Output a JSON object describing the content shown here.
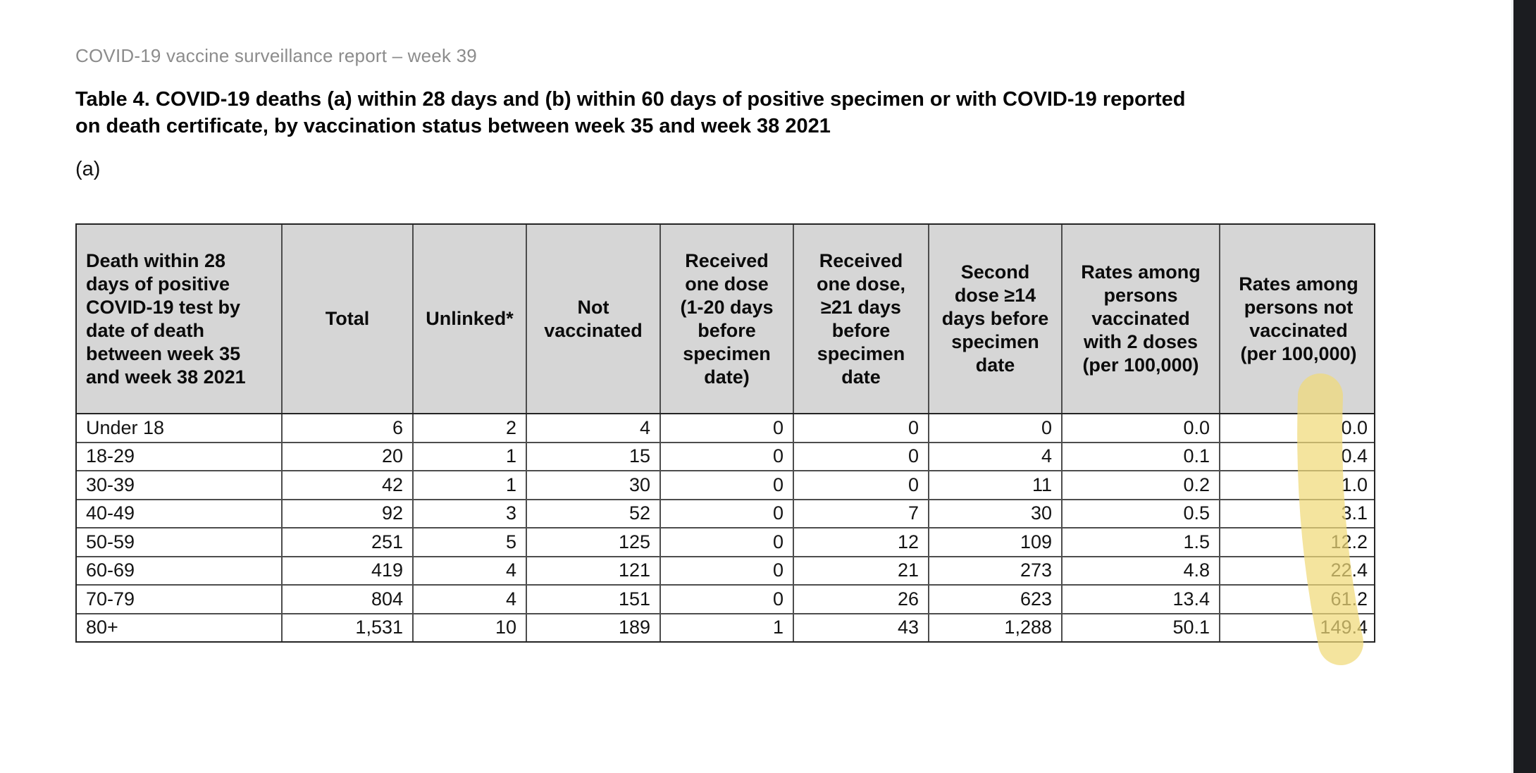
{
  "page": {
    "header": "COVID-19 vaccine surveillance report – week 39",
    "title_line1": "Table 4. COVID-19 deaths (a) within 28 days and (b) within 60 days of positive specimen or with COVID-19 reported",
    "title_line2": "on death certificate, by vaccination status between week 35 and week 38 2021",
    "section_label": "(a)"
  },
  "table": {
    "columns": [
      "Death within 28\ndays of positive\nCOVID-19 test by\ndate of death\nbetween week 35\nand week 38 2021",
      "Total",
      "Unlinked*",
      "Not\nvaccinated",
      "Received\none dose\n(1-20 days\nbefore\nspecimen\ndate)",
      "Received\none dose,\n≥21 days\nbefore\nspecimen\ndate",
      "Second\ndose ≥14\ndays before\nspecimen\ndate",
      "Rates among\npersons\nvaccinated\nwith 2 doses\n(per 100,000)",
      "Rates among\npersons not\nvaccinated\n(per 100,000)"
    ],
    "rows": [
      {
        "label": "Under 18",
        "values": [
          "6",
          "2",
          "4",
          "0",
          "0",
          "0",
          "0.0",
          "0.0"
        ]
      },
      {
        "label": "18-29",
        "values": [
          "20",
          "1",
          "15",
          "0",
          "0",
          "4",
          "0.1",
          "0.4"
        ]
      },
      {
        "label": "30-39",
        "values": [
          "42",
          "1",
          "30",
          "0",
          "0",
          "11",
          "0.2",
          "1.0"
        ]
      },
      {
        "label": "40-49",
        "values": [
          "92",
          "3",
          "52",
          "0",
          "7",
          "30",
          "0.5",
          "3.1"
        ]
      },
      {
        "label": "50-59",
        "values": [
          "251",
          "5",
          "125",
          "0",
          "12",
          "109",
          "1.5",
          "12.2"
        ]
      },
      {
        "label": "60-69",
        "values": [
          "419",
          "4",
          "121",
          "0",
          "21",
          "273",
          "4.8",
          "22.4"
        ]
      },
      {
        "label": "70-79",
        "values": [
          "804",
          "4",
          "151",
          "0",
          "26",
          "623",
          "13.4",
          "61.2"
        ]
      },
      {
        "label": "80+",
        "values": [
          "1,531",
          "10",
          "189",
          "1",
          "43",
          "1,288",
          "50.1",
          "149.4"
        ]
      }
    ]
  },
  "highlight": {
    "color": "#f0d978",
    "opacity": 0.72,
    "target": "Rates among persons not vaccinated (per 100,000) column values"
  },
  "colors": {
    "header_bg": "#d6d6d6",
    "table_border": "#242424",
    "cell_border": "#4d4d4d",
    "muted_text": "#8c8c8c",
    "viewer_edge": "#1b1c20"
  }
}
